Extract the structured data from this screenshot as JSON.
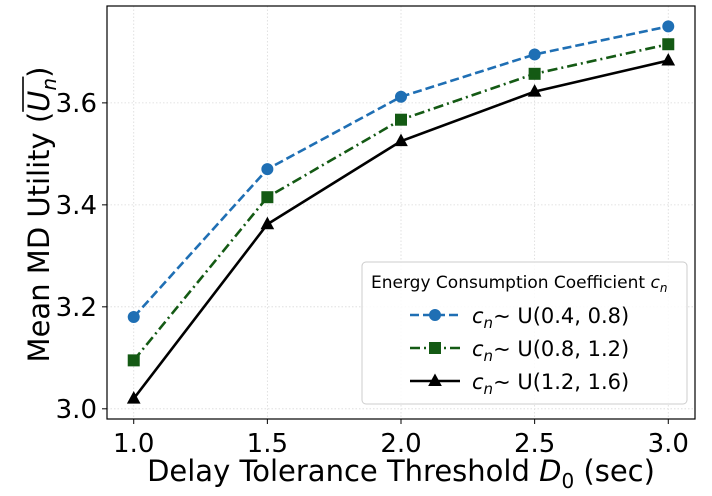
{
  "chart_data": {
    "type": "line",
    "title": "",
    "xlabel": "Delay Tolerance Threshold D₀ (sec)",
    "xlabel_parts": {
      "main": "Delay Tolerance Threshold ",
      "var": "D",
      "sub": "0",
      "tail": " (sec)"
    },
    "ylabel": "Mean MD Utility (U̅ₙ)",
    "ylabel_parts": {
      "main": "Mean MD Utility (",
      "var": "U",
      "sub": "n",
      "tail": ")"
    },
    "x": [
      1.0,
      1.5,
      2.0,
      2.5,
      3.0
    ],
    "x_tick_labels": [
      "1.0",
      "1.5",
      "2.0",
      "2.5",
      "3.0"
    ],
    "y_tick_values": [
      3.0,
      3.2,
      3.4,
      3.6
    ],
    "y_tick_labels": [
      "3.0",
      "3.2",
      "3.4",
      "3.6"
    ],
    "xlim": [
      0.9,
      3.1
    ],
    "ylim": [
      2.98,
      3.79
    ],
    "grid": true,
    "legend": {
      "placement": "lower-right",
      "title": "Energy Consumption Coefficient ",
      "title_var": "c",
      "title_sub": "n"
    },
    "series": [
      {
        "name": "cₙ ∼ U(0.4, 0.8)",
        "var": "c",
        "sub": "n",
        "dist": "U(0.4, 0.8)",
        "values": [
          3.18,
          3.47,
          3.612,
          3.695,
          3.75
        ],
        "color": "#1f6fb4",
        "dash": "dashed",
        "marker": "circle"
      },
      {
        "name": "cₙ ∼ U(0.8, 1.2)",
        "var": "c",
        "sub": "n",
        "dist": "U(0.8, 1.2)",
        "values": [
          3.095,
          3.415,
          3.567,
          3.657,
          3.715
        ],
        "color": "#145a14",
        "dash": "dashdot",
        "marker": "square"
      },
      {
        "name": "cₙ ∼ U(1.2, 1.6)",
        "var": "c",
        "sub": "n",
        "dist": "U(1.2, 1.6)",
        "values": [
          3.02,
          3.362,
          3.525,
          3.622,
          3.683
        ],
        "color": "#000000",
        "dash": "solid",
        "marker": "triangle"
      }
    ]
  }
}
